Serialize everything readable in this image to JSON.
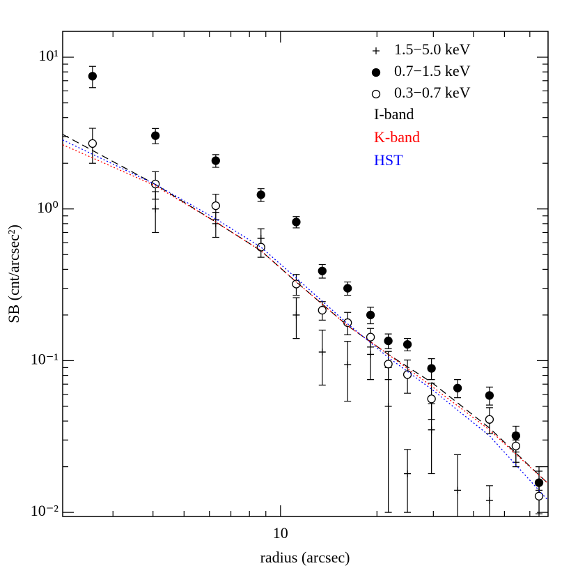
{
  "chart_data": {
    "type": "scatter",
    "xlabel": "radius (arcsec)",
    "ylabel": "SB (cnt/arcsec²)",
    "xscale": "log",
    "yscale": "log",
    "xlim": [
      2.09,
      68.4
    ],
    "ylim": [
      0.0094,
      14.8
    ],
    "xticks": [
      10
    ],
    "xminor_ticks": [
      3,
      4,
      5,
      6,
      7,
      8,
      9,
      20,
      30,
      40,
      50,
      60
    ],
    "yticks": [
      {
        "value": 0.01,
        "label": "10⁻²"
      },
      {
        "value": 0.1,
        "label": "10⁻¹"
      },
      {
        "value": 1,
        "label": "10⁰"
      },
      {
        "value": 10,
        "label": "10¹"
      }
    ],
    "yminor_ticks": [
      0.02,
      0.03,
      0.04,
      0.05,
      0.06,
      0.07,
      0.08,
      0.09,
      0.2,
      0.3,
      0.4,
      0.5,
      0.6,
      0.7,
      0.8,
      0.9,
      2,
      3,
      4,
      5,
      6,
      7,
      8,
      9
    ],
    "legend": "upper right",
    "series": [
      {
        "name": "1.5−5.0 keV",
        "color": "#000000",
        "marker": "plus",
        "x": [
          2.59,
          4.07,
          6.28,
          8.69,
          11.2,
          13.5,
          16.2,
          19.1,
          21.7,
          24.9,
          29.6,
          35.7,
          44.9,
          54.3,
          64.1
        ],
        "values": [
          null,
          1.0,
          0.8,
          0.64,
          0.2,
          0.114,
          0.094,
          0.11,
          0.05,
          0.018,
          0.035,
          0.014,
          0.012,
          0.025,
          0.014
        ],
        "errors": [
          null,
          0.3,
          0.15,
          0.1,
          0.06,
          0.045,
          0.04,
          0.035,
          0.04,
          0.008,
          0.017,
          0.01,
          0.003,
          0.005,
          0.006
        ]
      },
      {
        "name": "0.7−1.5 keV",
        "color": "#000000",
        "marker": "filled",
        "x": [
          2.59,
          4.07,
          6.28,
          8.69,
          11.2,
          13.5,
          16.2,
          19.1,
          21.7,
          24.9,
          29.6,
          35.7,
          44.9,
          54.3,
          64.1
        ],
        "values": [
          7.5,
          3.04,
          2.08,
          1.24,
          0.82,
          0.39,
          0.3,
          0.2,
          0.135,
          0.128,
          0.089,
          0.066,
          0.059,
          0.032,
          0.0157
        ],
        "errors": [
          1.2,
          0.35,
          0.2,
          0.12,
          0.07,
          0.04,
          0.03,
          0.025,
          0.015,
          0.012,
          0.014,
          0.009,
          0.008,
          0.005,
          0.003
        ]
      },
      {
        "name": "0.3−0.7 keV",
        "color": "#000000",
        "marker": "open",
        "x": [
          2.59,
          4.07,
          6.28,
          8.69,
          11.2,
          13.5,
          16.2,
          19.1,
          21.7,
          24.9,
          29.6,
          35.7,
          44.9,
          54.3,
          64.1
        ],
        "values": [
          2.7,
          1.46,
          1.05,
          0.56,
          0.32,
          0.215,
          0.178,
          0.143,
          0.095,
          0.081,
          0.056,
          null,
          0.041,
          0.0274,
          0.0128
        ],
        "errors": [
          0.7,
          0.3,
          0.2,
          0.08,
          0.05,
          0.03,
          0.03,
          0.02,
          0.02,
          0.02,
          0.015,
          null,
          0.008,
          0.006,
          0.003
        ]
      },
      {
        "name": "I-band",
        "color": "#000000",
        "linestyle": "dashed",
        "x": [
          2.09,
          4.07,
          6.28,
          8.69,
          11.2,
          16.2,
          21.7,
          29.6,
          44.9,
          68.4
        ],
        "values": [
          3.1,
          1.45,
          0.82,
          0.53,
          0.33,
          0.17,
          0.11,
          0.072,
          0.036,
          0.0155
        ]
      },
      {
        "name": "K-band",
        "color": "#ff0000",
        "linestyle": "dotted",
        "x": [
          2.09,
          4.07,
          6.28,
          8.69,
          11.2,
          16.2,
          21.7,
          29.6,
          44.9,
          68.4
        ],
        "values": [
          2.65,
          1.42,
          0.82,
          0.53,
          0.33,
          0.17,
          0.11,
          0.068,
          0.035,
          0.0155
        ]
      },
      {
        "name": "HST",
        "color": "#0000ff",
        "linestyle": "dotted",
        "x": [
          2.09,
          4.07,
          6.28,
          8.69,
          11.2,
          16.2,
          21.7,
          29.6,
          44.9,
          68.4
        ],
        "values": [
          2.85,
          1.45,
          0.86,
          0.56,
          0.35,
          0.175,
          0.105,
          0.065,
          0.032,
          0.012
        ]
      }
    ]
  }
}
